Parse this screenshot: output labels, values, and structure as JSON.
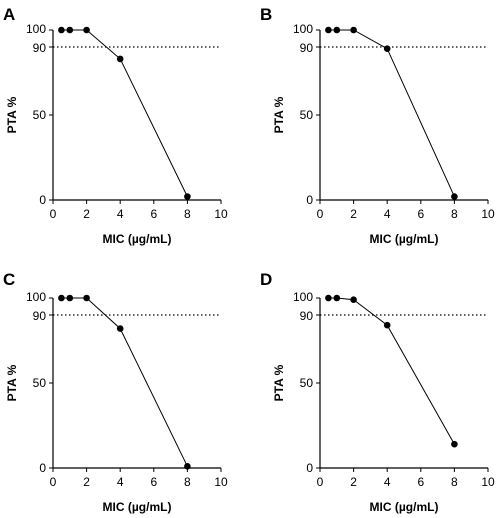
{
  "chart_data": [
    {
      "panel": "A",
      "type": "line",
      "x": [
        0.5,
        1,
        2,
        4,
        8
      ],
      "y": [
        100,
        100,
        100,
        83,
        2
      ],
      "xlabel": "MIC (µg/mL)",
      "ylabel": "PTA %",
      "xlim": [
        0,
        10
      ],
      "ylim": [
        0,
        100
      ],
      "xticks": [
        "0",
        "2",
        "4",
        "6",
        "8",
        "10"
      ],
      "yticks": [
        "0",
        "50",
        "90",
        "100"
      ],
      "reference_line": 90
    },
    {
      "panel": "B",
      "type": "line",
      "x": [
        0.5,
        1,
        2,
        4,
        8
      ],
      "y": [
        100,
        100,
        100,
        89,
        2
      ],
      "xlabel": "MIC (µg/mL)",
      "ylabel": "PTA %",
      "xlim": [
        0,
        10
      ],
      "ylim": [
        0,
        100
      ],
      "xticks": [
        "0",
        "2",
        "4",
        "6",
        "8",
        "10"
      ],
      "yticks": [
        "0",
        "50",
        "90",
        "100"
      ],
      "reference_line": 90
    },
    {
      "panel": "C",
      "type": "line",
      "x": [
        0.5,
        1,
        2,
        4,
        8
      ],
      "y": [
        100,
        100,
        100,
        82,
        1
      ],
      "xlabel": "MIC (µg/mL)",
      "ylabel": "PTA %",
      "xlim": [
        0,
        10
      ],
      "ylim": [
        0,
        100
      ],
      "xticks": [
        "0",
        "2",
        "4",
        "6",
        "8",
        "10"
      ],
      "yticks": [
        "0",
        "50",
        "90",
        "100"
      ],
      "reference_line": 90
    },
    {
      "panel": "D",
      "type": "line",
      "x": [
        0.5,
        1,
        2,
        4,
        8
      ],
      "y": [
        100,
        100,
        99,
        84,
        14
      ],
      "xlabel": "MIC (µg/mL)",
      "ylabel": "PTA %",
      "xlim": [
        0,
        10
      ],
      "ylim": [
        0,
        100
      ],
      "xticks": [
        "0",
        "2",
        "4",
        "6",
        "8",
        "10"
      ],
      "yticks": [
        "0",
        "50",
        "90",
        "100"
      ],
      "reference_line": 90
    }
  ]
}
